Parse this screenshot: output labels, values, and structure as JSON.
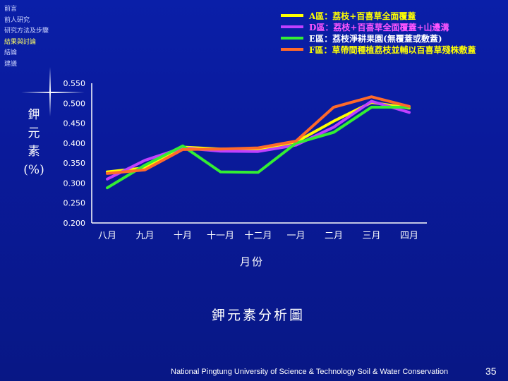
{
  "nav": {
    "items": [
      {
        "label": "前言",
        "active": false
      },
      {
        "label": "前人研究",
        "active": false
      },
      {
        "label": "研究方法及步驟",
        "active": false
      },
      {
        "label": "結果與討論",
        "active": true
      },
      {
        "label": "結論",
        "active": false
      },
      {
        "label": "建議",
        "active": false
      }
    ]
  },
  "colors": {
    "background": "#0a1fa8",
    "accent": "#ffff66"
  },
  "chart_data": {
    "type": "line",
    "title": "鉀元素分析圖",
    "xlabel": "月份",
    "ylabel_chars": [
      "鉀",
      "元",
      "素",
      "(%)"
    ],
    "categories": [
      "八月",
      "九月",
      "十月",
      "十一月",
      "十二月",
      "一月",
      "二月",
      "三月",
      "四月"
    ],
    "y_ticks": [
      "0.200",
      "0.250",
      "0.300",
      "0.350",
      "0.400",
      "0.450",
      "0.500",
      "0.550"
    ],
    "ylim": [
      0.2,
      0.55
    ],
    "grid": false,
    "legend_position": "top-right",
    "series": [
      {
        "name": "A區：荔枝+百喜草全面覆蓋",
        "color": "#ffff00",
        "label_color": "#ffff00",
        "values": [
          0.328,
          0.338,
          0.39,
          0.385,
          0.385,
          0.403,
          0.455,
          0.502,
          0.488
        ]
      },
      {
        "name": "D區：荔枝+百喜草全面覆蓋+山邊溝",
        "color": "#c040ff",
        "label_color": "#ff55ff",
        "values": [
          0.31,
          0.357,
          0.388,
          0.38,
          0.379,
          0.395,
          0.44,
          0.505,
          0.477
        ]
      },
      {
        "name": "E區：荔枝淨耕果園(無覆蓋或敷蓋)",
        "color": "#33ee33",
        "label_color": "#ffffff",
        "values": [
          0.288,
          0.345,
          0.393,
          0.328,
          0.327,
          0.4,
          0.427,
          0.49,
          0.49
        ]
      },
      {
        "name": "F區：草帶間種植荔枝並輔以百喜草殘株敷蓋",
        "color": "#ff6a2a",
        "label_color": "#ffff00",
        "values": [
          0.324,
          0.333,
          0.384,
          0.385,
          0.388,
          0.405,
          0.49,
          0.516,
          0.492
        ]
      }
    ]
  },
  "footer": {
    "text": "National Pingtung University of Science & Technology   Soil & Water Conservation",
    "page": "35"
  }
}
